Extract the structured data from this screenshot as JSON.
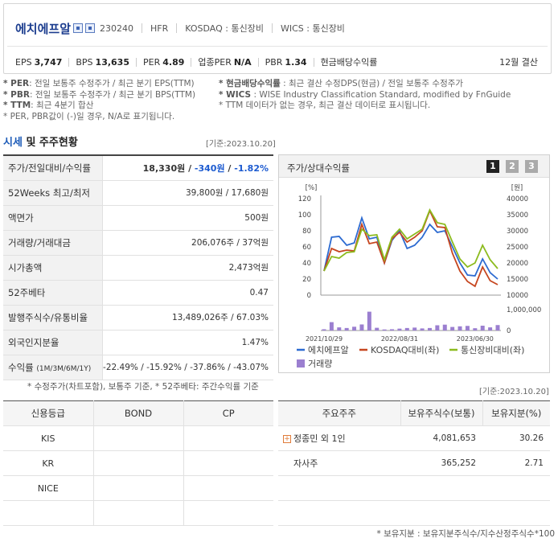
{
  "header": {
    "company_name": "에치에프알",
    "code": "230240",
    "ticker": "HFR",
    "market": "KOSDAQ : 통신장비",
    "wics": "WICS : 통신장비",
    "settlement": "12월 결산",
    "metrics": [
      {
        "label": "EPS",
        "value": "3,747"
      },
      {
        "label": "BPS",
        "value": "13,635"
      },
      {
        "label": "PER",
        "value": "4.89"
      },
      {
        "label": "업종PER",
        "value": "N/A"
      },
      {
        "label": "PBR",
        "value": "1.34"
      },
      {
        "label": "현금배당수익률",
        "value": ""
      }
    ]
  },
  "notes": {
    "left": [
      {
        "key": "* PER",
        "text": ": 전일 보통주 수정주가 / 최근 분기 EPS(TTM)"
      },
      {
        "key": "* PBR",
        "text": ": 전일 보통주 수정주가 / 최근 분기 BPS(TTM)"
      },
      {
        "key": "* TTM",
        "text": ": 최근 4분기 합산"
      },
      {
        "key": "",
        "text": "* PER, PBR값이 (-)일 경우, N/A로 표기됩니다."
      }
    ],
    "right": [
      {
        "key": "* 현금배당수익률",
        "text": " : 최근 결산 수정DPS(현금) / 전일 보통주 수정주가"
      },
      {
        "key": "* WICS",
        "text": " : WISE Industry Classification Standard, modified by FnGuide"
      },
      {
        "key": "",
        "text": "* TTM 데이터가 없는 경우, 최근 결산 데이터로 표시됩니다."
      }
    ]
  },
  "section": {
    "title_blue": "시세",
    "title_rest": " 및 주주현황",
    "stamp": "[기준:2023.10.20]",
    "stamp2": "[기준:2023.10.20]"
  },
  "market_table": [
    {
      "label": "주가/전일대비/수익률",
      "value": "18,330원 / -340원 / -1.82%"
    },
    {
      "label": "52Weeks 최고/최저",
      "value": "39,800원 / 17,680원"
    },
    {
      "label": "액면가",
      "value": "500원"
    },
    {
      "label": "거래량/거래대금",
      "value": "206,076주 / 37억원"
    },
    {
      "label": "시가총액",
      "value": "2,473억원"
    },
    {
      "label": "52주베타",
      "value": "0.47"
    },
    {
      "label": "발행주식수/유통비율",
      "value": "13,489,026주 / 67.03%"
    },
    {
      "label": "외국인지분율",
      "value": "1.47%"
    },
    {
      "label": "수익률 (1M/3M/6M/1Y)",
      "value": "-22.49% / -15.92% / -37.86% / -43.07%"
    }
  ],
  "market_price": {
    "price": "18,330원",
    "change": "-340원",
    "rate": "-1.82%"
  },
  "returns": {
    "label_main": "수익률",
    "label_sub": "(1M/3M/6M/1Y)",
    "values": [
      "-22.49%",
      "-15.92%",
      "-37.86%",
      "-43.07%"
    ]
  },
  "footnote1": "* 수정주가(차트포함), 보통주 기준, * 52주베타: 주간수익률 기준",
  "chart": {
    "title": "주가/상대수익률",
    "pages": [
      "1",
      "2",
      "3"
    ],
    "left_unit": "[%]",
    "right_unit": "[원]"
  },
  "chart_data": {
    "type": "line",
    "x_ticks": [
      "2021/10/29",
      "2022/08/31",
      "2023/06/30"
    ],
    "left_axis": {
      "ticks": [
        120,
        100,
        80,
        60,
        40,
        20,
        0
      ],
      "range": [
        0,
        120
      ]
    },
    "right_axis": {
      "ticks": [
        "40000",
        "35000",
        "30000",
        "25000",
        "20000",
        "15000",
        "10000"
      ],
      "range": [
        10000,
        40000
      ]
    },
    "volume_axis": {
      "ticks": [
        "1,000,000",
        "0"
      ],
      "range": [
        0,
        1000000
      ]
    },
    "series": [
      {
        "name": "에치에프알",
        "color": "#2d6bd1",
        "values": [
          30,
          72,
          73,
          62,
          65,
          96,
          70,
          72,
          40,
          68,
          80,
          58,
          62,
          72,
          88,
          78,
          80,
          60,
          40,
          25,
          24,
          45,
          28,
          20
        ]
      },
      {
        "name": "KOSDAQ대비(좌)",
        "color": "#c6461f",
        "values": [
          30,
          58,
          54,
          56,
          55,
          88,
          64,
          66,
          40,
          70,
          78,
          66,
          72,
          80,
          105,
          85,
          84,
          52,
          30,
          17,
          11,
          35,
          18,
          13
        ]
      },
      {
        "name": "통신장비대비(좌)",
        "color": "#8cbb1e",
        "values": [
          30,
          48,
          46,
          53,
          54,
          82,
          74,
          75,
          44,
          72,
          82,
          70,
          76,
          82,
          106,
          90,
          88,
          66,
          45,
          35,
          40,
          62,
          44,
          33
        ]
      }
    ],
    "volume": {
      "name": "거래량",
      "color": "#9b7fd0",
      "values": [
        60000,
        400000,
        150000,
        120000,
        180000,
        290000,
        900000,
        130000,
        50000,
        60000,
        90000,
        120000,
        140000,
        100000,
        120000,
        250000,
        280000,
        170000,
        200000,
        220000,
        110000,
        230000,
        150000,
        260000
      ]
    }
  },
  "credit": {
    "headers": [
      "신용등급",
      "BOND",
      "CP"
    ],
    "rows": [
      [
        "KIS",
        "",
        ""
      ],
      [
        "KR",
        "",
        ""
      ],
      [
        "NICE",
        "",
        ""
      ],
      [
        "",
        "",
        ""
      ]
    ]
  },
  "shareholders": {
    "headers": [
      "주요주주",
      "보유주식수(보통)",
      "보유지분(%)"
    ],
    "rows": [
      {
        "name": "정종민 외 1인",
        "shares": "4,081,653",
        "pct": "30.26",
        "expand": "+"
      },
      {
        "name": "자사주",
        "shares": "365,252",
        "pct": "2.71",
        "expand": ""
      },
      {
        "name": "",
        "shares": "",
        "pct": "",
        "expand": ""
      },
      {
        "name": "",
        "shares": "",
        "pct": "",
        "expand": ""
      }
    ]
  },
  "footnote2": "* 보유지분 : 보유지분주식수/지수산정주식수*100",
  "colors": {
    "brand": "#1c3d8f",
    "negative": "#1d5bd0"
  }
}
